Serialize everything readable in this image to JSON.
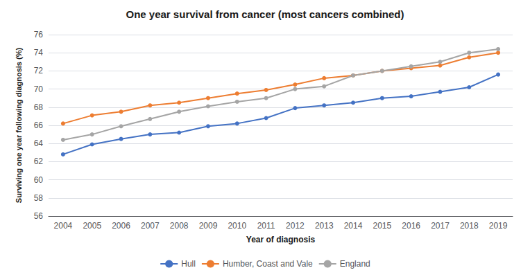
{
  "chart_data": {
    "type": "line",
    "title": "One year survival from cancer (most cancers combined)",
    "xlabel": "Year of diagnosis",
    "ylabel": "Surviving one year following diagnosis (%)",
    "categories": [
      "2004",
      "2005",
      "2006",
      "2007",
      "2008",
      "2009",
      "2010",
      "2011",
      "2012",
      "2013",
      "2014",
      "2015",
      "2016",
      "2017",
      "2018",
      "2019"
    ],
    "series": [
      {
        "name": "Hull",
        "color": "#4472C4",
        "values": [
          62.8,
          63.9,
          64.5,
          65.0,
          65.2,
          65.9,
          66.2,
          66.8,
          67.9,
          68.2,
          68.5,
          69.0,
          69.2,
          69.7,
          70.2,
          71.6
        ]
      },
      {
        "name": "Humber, Coast and Vale",
        "color": "#ED7D31",
        "values": [
          66.2,
          67.1,
          67.5,
          68.2,
          68.5,
          69.0,
          69.5,
          69.9,
          70.5,
          71.2,
          71.5,
          72.0,
          72.3,
          72.6,
          73.5,
          74.0
        ]
      },
      {
        "name": "England",
        "color": "#A5A5A5",
        "values": [
          64.4,
          65.0,
          65.9,
          66.7,
          67.5,
          68.1,
          68.6,
          69.0,
          70.0,
          70.3,
          71.5,
          72.0,
          72.5,
          73.0,
          74.0,
          74.4
        ]
      }
    ],
    "ylim": [
      56,
      76
    ],
    "yticks": [
      56,
      58,
      60,
      62,
      64,
      66,
      68,
      70,
      72,
      74,
      76
    ],
    "grid": true,
    "legend": "bottom",
    "marker": "circle"
  }
}
